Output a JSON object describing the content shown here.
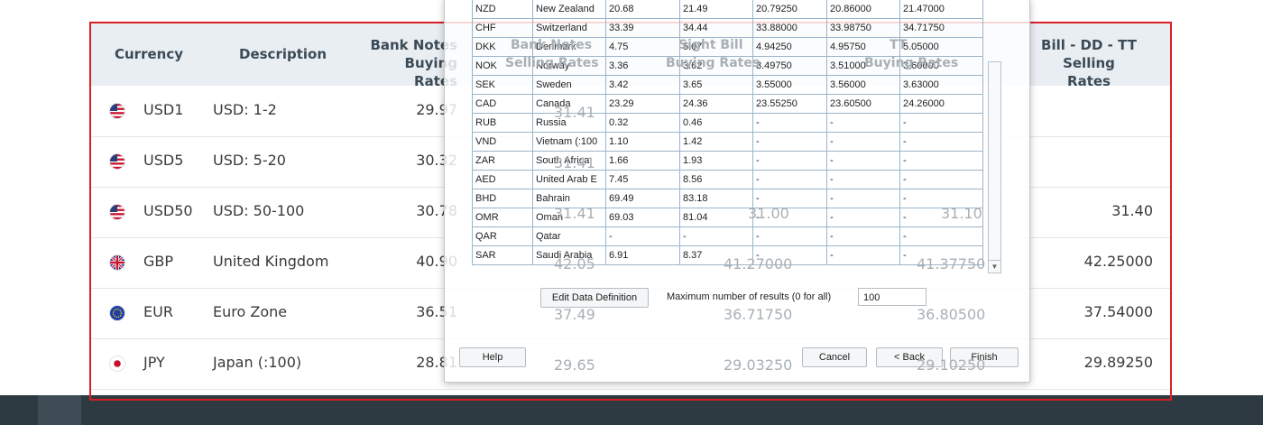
{
  "rates_table": {
    "headers": {
      "currency": "Currency",
      "description": "Description",
      "bank_notes_buying": "Bank Notes\nBuying Rates",
      "bill_dd_tt_selling": "Bill - DD - TT\nSelling Rates"
    },
    "rows": [
      {
        "flag": "us",
        "code": "USD1",
        "description": "USD: 1-2",
        "buying": "29.97",
        "last": ""
      },
      {
        "flag": "us",
        "code": "USD5",
        "description": "USD: 5-20",
        "buying": "30.32",
        "last": ""
      },
      {
        "flag": "us",
        "code": "USD50",
        "description": "USD: 50-100",
        "buying": "30.78",
        "last": "31.40"
      },
      {
        "flag": "gb",
        "code": "GBP",
        "description": "United Kingdom",
        "buying": "40.90",
        "last": "42.25000"
      },
      {
        "flag": "eu",
        "code": "EUR",
        "description": "Euro Zone",
        "buying": "36.51",
        "last": "37.54000"
      },
      {
        "flag": "jp",
        "code": "JPY",
        "description": "Japan (:100)",
        "buying": "28.81",
        "last": "29.89250"
      }
    ]
  },
  "ghost_text": {
    "header_bank_notes": "Bank Notes",
    "header_selling_rates": "Selling Rates",
    "header_sight_bill": "Sight Bill",
    "header_buying_rates": "Buying Rates",
    "header_tt": "TT",
    "header_buying_rates_2": "Buying Rates",
    "usd1_selling": "31.41",
    "usd5_selling": "31.41",
    "usd50_selling": "31.41",
    "usd50_sight": "31.00",
    "usd50_tt": "31.10",
    "gbp_selling": "42.05",
    "gbp_sight": "41.27000",
    "gbp_tt": "41.37750",
    "eur_selling": "37.49",
    "eur_sight": "36.71750",
    "eur_tt": "36.80500",
    "jpy_selling": "29.65",
    "jpy_sight": "29.03250",
    "jpy_tt": "29.10250"
  },
  "dialog": {
    "rows": [
      [
        "NZD",
        "New Zealand",
        "20.68",
        "21.49",
        "20.79250",
        "20.86000",
        "21.47000"
      ],
      [
        "CHF",
        "Switzerland",
        "33.39",
        "34.44",
        "33.88000",
        "33.98750",
        "34.71750"
      ],
      [
        "DKK",
        "Denmark",
        "4.75",
        "5.07",
        "4.94250",
        "4.95750",
        "5.05000"
      ],
      [
        "NOK",
        "Norway",
        "3.36",
        "3.62",
        "3.49750",
        "3.51000",
        "3.60000"
      ],
      [
        "SEK",
        "Sweden",
        "3.42",
        "3.65",
        "3.55000",
        "3.56000",
        "3.63000"
      ],
      [
        "CAD",
        "Canada",
        "23.29",
        "24.36",
        "23.55250",
        "23.60500",
        "24.26000"
      ],
      [
        "RUB",
        "Russia",
        "0.32",
        "0.46",
        "-",
        "-",
        "-"
      ],
      [
        "VND",
        "Vietnam (:100",
        "1.10",
        "1.42",
        "-",
        "-",
        "-"
      ],
      [
        "ZAR",
        "South Africa",
        "1.66",
        "1.93",
        "-",
        "-",
        "-"
      ],
      [
        "AED",
        "United Arab E",
        "7.45",
        "8.56",
        "-",
        "-",
        "-"
      ],
      [
        "BHD",
        "Bahrain",
        "69.49",
        "83.18",
        "-",
        "-",
        "-"
      ],
      [
        "OMR",
        "Oman",
        "69.03",
        "81.04",
        "-",
        "-",
        "-"
      ],
      [
        "QAR",
        "Qatar",
        "-",
        "-",
        "-",
        "-",
        "-"
      ],
      [
        "SAR",
        "Saudi Arabia",
        "6.91",
        "8.37",
        "-",
        "-",
        "-"
      ]
    ],
    "edit_button": "Edit Data Definition",
    "max_results_label": "Maximum number of results (0 for all)",
    "max_results_value": "100",
    "help_button": "Help",
    "cancel_button": "Cancel",
    "back_button": "< Back",
    "finish_button": "Finish"
  },
  "colors": {
    "frame": "#d81f26",
    "header_bg": "#e9eef3",
    "bottom_bar": "#2d3a41"
  }
}
